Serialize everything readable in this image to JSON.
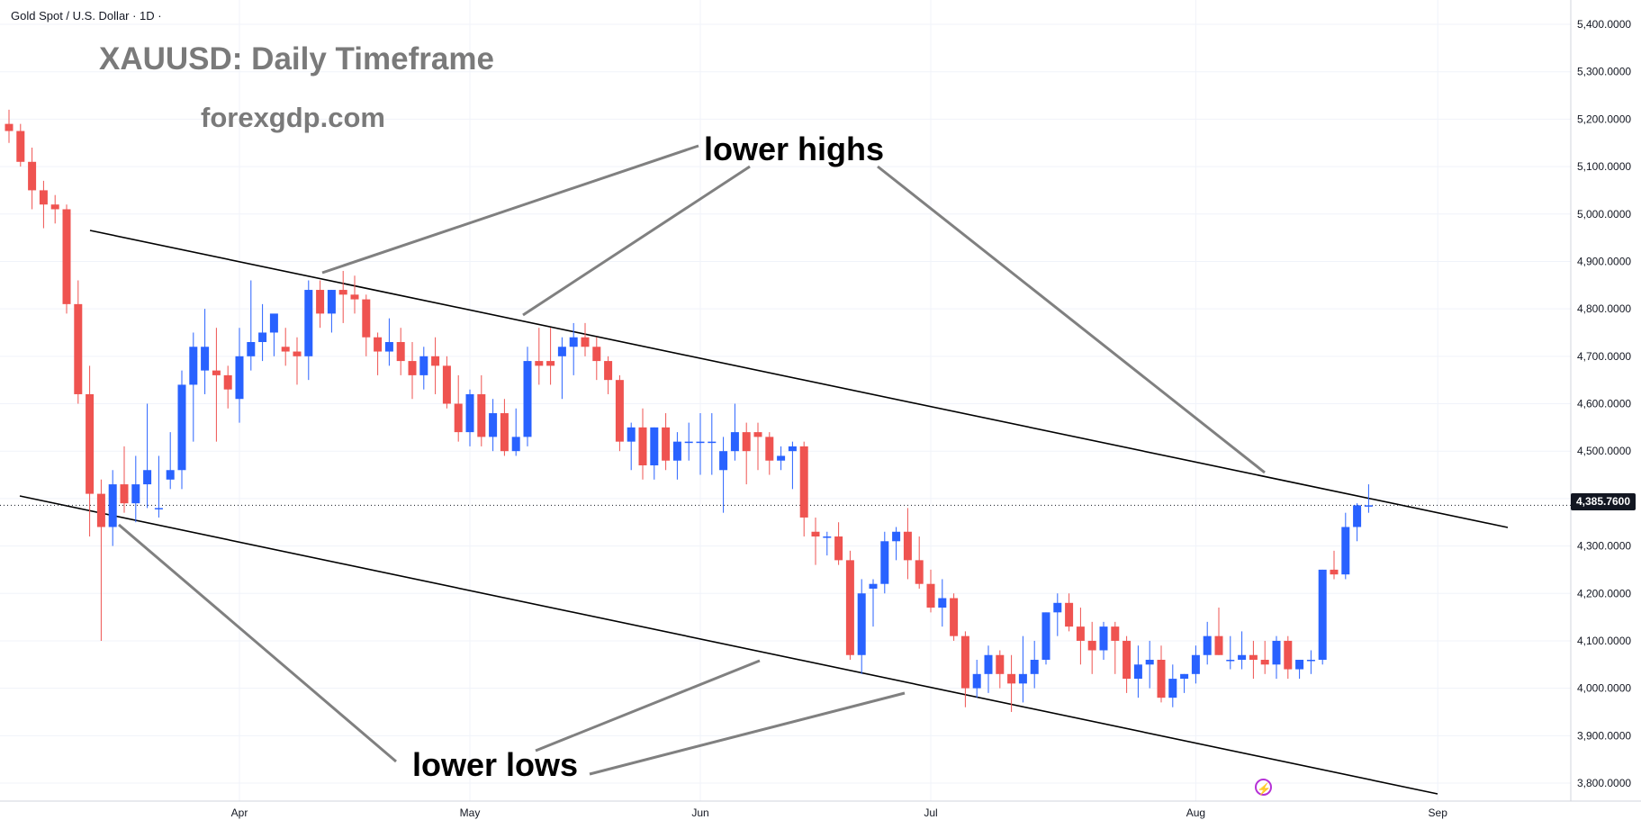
{
  "header": {
    "symbol": "Gold Spot / U.S. Dollar · 1D ·",
    "title": "XAUUSD: Daily Timeframe",
    "site": "forexgdp.com"
  },
  "annotations": {
    "lower_highs": "lower highs",
    "lower_lows": "lower lows"
  },
  "icons": {
    "flash": "lightning-icon"
  },
  "colors": {
    "up": "#2962ff",
    "down": "#ef5350",
    "trendline": "#000000",
    "pointer": "#808080",
    "grid": "#f0f3fa"
  },
  "chart_data": {
    "type": "candlestick",
    "title": "XAUUSD: Daily Timeframe",
    "ylim": [
      3750,
      5450
    ],
    "y_ticks": [
      3800,
      3900,
      4000,
      4100,
      4200,
      4300,
      4400,
      4500,
      4600,
      4700,
      4800,
      4900,
      5000,
      5100,
      5200,
      5300,
      5400
    ],
    "y_tick_labels": [
      "3,800.0000",
      "3,900.0000",
      "4,000.0000",
      "4,100.0000",
      "4,200.0000",
      "4,300.0000",
      "4,400.0000",
      "4,500.0000",
      "4,600.0000",
      "4,700.0000",
      "4,800.0000",
      "4,900.0000",
      "5,000.0000",
      "5,100.0000",
      "5,200.0000",
      "5,300.0000",
      "5,400.0000"
    ],
    "x_ticks": [
      {
        "label": "Apr",
        "candle_index": 20
      },
      {
        "label": "May",
        "candle_index": 40
      },
      {
        "label": "Jun",
        "candle_index": 60
      },
      {
        "label": "Jul",
        "candle_index": 80
      },
      {
        "label": "Aug",
        "candle_index": 103
      },
      {
        "label": "Sep",
        "candle_index": 124
      }
    ],
    "last_price": 4385.76,
    "last_price_label": "4,385.7600",
    "candles": [
      [
        5190,
        5220,
        5150,
        5175
      ],
      [
        5175,
        5190,
        5100,
        5110
      ],
      [
        5110,
        5140,
        5010,
        5050
      ],
      [
        5050,
        5070,
        4970,
        5020
      ],
      [
        5020,
        5040,
        4980,
        5010
      ],
      [
        5010,
        5020,
        4790,
        4810
      ],
      [
        4810,
        4860,
        4600,
        4620
      ],
      [
        4620,
        4680,
        4320,
        4410
      ],
      [
        4410,
        4440,
        4100,
        4340
      ],
      [
        4340,
        4460,
        4300,
        4430
      ],
      [
        4430,
        4510,
        4370,
        4390
      ],
      [
        4390,
        4490,
        4350,
        4430
      ],
      [
        4430,
        4600,
        4380,
        4460
      ],
      [
        4380,
        4490,
        4360,
        4380
      ],
      [
        4440,
        4540,
        4420,
        4460
      ],
      [
        4460,
        4670,
        4420,
        4640
      ],
      [
        4640,
        4750,
        4520,
        4720
      ],
      [
        4670,
        4800,
        4620,
        4720
      ],
      [
        4670,
        4760,
        4520,
        4660
      ],
      [
        4660,
        4680,
        4590,
        4630
      ],
      [
        4610,
        4760,
        4560,
        4700
      ],
      [
        4700,
        4860,
        4670,
        4730
      ],
      [
        4730,
        4810,
        4690,
        4750
      ],
      [
        4750,
        4780,
        4700,
        4790
      ],
      [
        4720,
        4760,
        4680,
        4710
      ],
      [
        4710,
        4740,
        4640,
        4700
      ],
      [
        4700,
        4860,
        4650,
        4840
      ],
      [
        4840,
        4860,
        4760,
        4790
      ],
      [
        4790,
        4840,
        4750,
        4840
      ],
      [
        4840,
        4880,
        4770,
        4830
      ],
      [
        4830,
        4870,
        4790,
        4820
      ],
      [
        4820,
        4830,
        4700,
        4740
      ],
      [
        4740,
        4750,
        4660,
        4710
      ],
      [
        4710,
        4780,
        4680,
        4730
      ],
      [
        4730,
        4760,
        4660,
        4690
      ],
      [
        4690,
        4730,
        4610,
        4660
      ],
      [
        4660,
        4720,
        4630,
        4700
      ],
      [
        4700,
        4740,
        4620,
        4680
      ],
      [
        4680,
        4700,
        4590,
        4600
      ],
      [
        4600,
        4660,
        4520,
        4540
      ],
      [
        4540,
        4630,
        4510,
        4620
      ],
      [
        4620,
        4660,
        4510,
        4530
      ],
      [
        4530,
        4610,
        4500,
        4580
      ],
      [
        4580,
        4610,
        4490,
        4500
      ],
      [
        4500,
        4590,
        4490,
        4530
      ],
      [
        4530,
        4720,
        4510,
        4690
      ],
      [
        4690,
        4760,
        4640,
        4680
      ],
      [
        4690,
        4760,
        4640,
        4680
      ],
      [
        4700,
        4740,
        4610,
        4720
      ],
      [
        4720,
        4770,
        4660,
        4740
      ],
      [
        4740,
        4770,
        4700,
        4720
      ],
      [
        4720,
        4740,
        4650,
        4690
      ],
      [
        4690,
        4700,
        4620,
        4650
      ],
      [
        4650,
        4660,
        4500,
        4520
      ],
      [
        4520,
        4560,
        4460,
        4550
      ],
      [
        4550,
        4590,
        4440,
        4470
      ],
      [
        4470,
        4550,
        4440,
        4550
      ],
      [
        4550,
        4580,
        4460,
        4480
      ],
      [
        4480,
        4540,
        4440,
        4520
      ],
      [
        4520,
        4560,
        4480,
        4520
      ],
      [
        4520,
        4580,
        4450,
        4520
      ],
      [
        4520,
        4580,
        4450,
        4520
      ],
      [
        4460,
        4530,
        4370,
        4500
      ],
      [
        4500,
        4600,
        4480,
        4540
      ],
      [
        4540,
        4560,
        4430,
        4500
      ],
      [
        4540,
        4560,
        4460,
        4530
      ],
      [
        4530,
        4540,
        4450,
        4480
      ],
      [
        4480,
        4510,
        4460,
        4490
      ],
      [
        4500,
        4520,
        4420,
        4510
      ],
      [
        4510,
        4520,
        4320,
        4360
      ],
      [
        4330,
        4360,
        4260,
        4320
      ],
      [
        4320,
        4330,
        4280,
        4320
      ],
      [
        4320,
        4350,
        4260,
        4270
      ],
      [
        4270,
        4290,
        4060,
        4070
      ],
      [
        4070,
        4230,
        4030,
        4200
      ],
      [
        4210,
        4230,
        4130,
        4220
      ],
      [
        4220,
        4330,
        4200,
        4310
      ],
      [
        4310,
        4340,
        4270,
        4330
      ],
      [
        4330,
        4380,
        4230,
        4270
      ],
      [
        4270,
        4320,
        4210,
        4220
      ],
      [
        4220,
        4250,
        4160,
        4170
      ],
      [
        4170,
        4230,
        4130,
        4190
      ],
      [
        4190,
        4200,
        4100,
        4110
      ],
      [
        4110,
        4120,
        3960,
        4000
      ],
      [
        4000,
        4060,
        3980,
        4030
      ],
      [
        4030,
        4090,
        3990,
        4070
      ],
      [
        4070,
        4080,
        4000,
        4030
      ],
      [
        4030,
        4070,
        3950,
        4010
      ],
      [
        4010,
        4110,
        3970,
        4030
      ],
      [
        4030,
        4100,
        4000,
        4060
      ],
      [
        4060,
        4160,
        4050,
        4160
      ],
      [
        4160,
        4200,
        4110,
        4180
      ],
      [
        4180,
        4200,
        4120,
        4130
      ],
      [
        4130,
        4170,
        4050,
        4100
      ],
      [
        4100,
        4140,
        4030,
        4080
      ],
      [
        4080,
        4140,
        4060,
        4130
      ],
      [
        4130,
        4140,
        4030,
        4100
      ],
      [
        4100,
        4110,
        3990,
        4020
      ],
      [
        4020,
        4090,
        3980,
        4050
      ],
      [
        4050,
        4100,
        4000,
        4060
      ],
      [
        4060,
        4090,
        3970,
        3980
      ],
      [
        3980,
        4050,
        3960,
        4020
      ],
      [
        4020,
        4030,
        3990,
        4030
      ],
      [
        4030,
        4090,
        4010,
        4070
      ],
      [
        4070,
        4140,
        4050,
        4110
      ],
      [
        4110,
        4170,
        4070,
        4070
      ],
      [
        4060,
        4110,
        4040,
        4060
      ],
      [
        4060,
        4120,
        4040,
        4070
      ],
      [
        4070,
        4100,
        4020,
        4060
      ],
      [
        4060,
        4100,
        4030,
        4050
      ],
      [
        4050,
        4110,
        4020,
        4100
      ],
      [
        4100,
        4110,
        4020,
        4040
      ],
      [
        4040,
        4060,
        4020,
        4060
      ],
      [
        4060,
        4080,
        4030,
        4060
      ],
      [
        4060,
        4250,
        4050,
        4250
      ],
      [
        4250,
        4290,
        4230,
        4240
      ],
      [
        4240,
        4370,
        4230,
        4340
      ],
      [
        4340,
        4390,
        4310,
        4385.76
      ],
      [
        4385.76,
        4430,
        4370,
        4385.76
      ]
    ]
  }
}
